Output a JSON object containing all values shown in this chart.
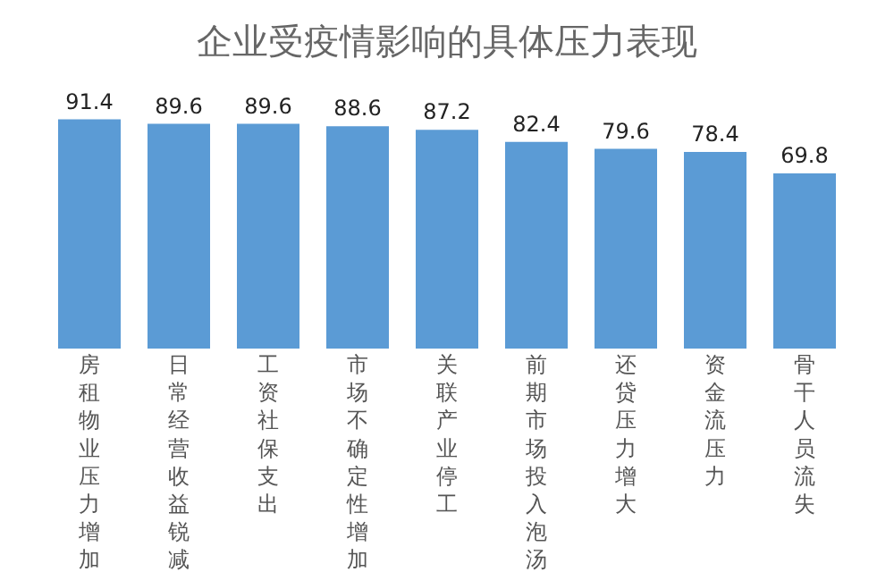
{
  "chart_data": {
    "type": "bar",
    "title": "企业受疫情影响的具体压力表现",
    "categories": [
      "房租物业压力增加",
      "日常经营收益锐减",
      "工资社保支出",
      "市场不确定性增加",
      "关联产业停工",
      "前期市场投入泡汤",
      "还贷压力增大",
      "资金流压力",
      "骨干人员流失"
    ],
    "values": [
      91.4,
      89.6,
      89.6,
      88.6,
      87.2,
      82.4,
      79.6,
      78.4,
      69.8
    ],
    "color": "#5b9bd5",
    "data_labels": true
  }
}
